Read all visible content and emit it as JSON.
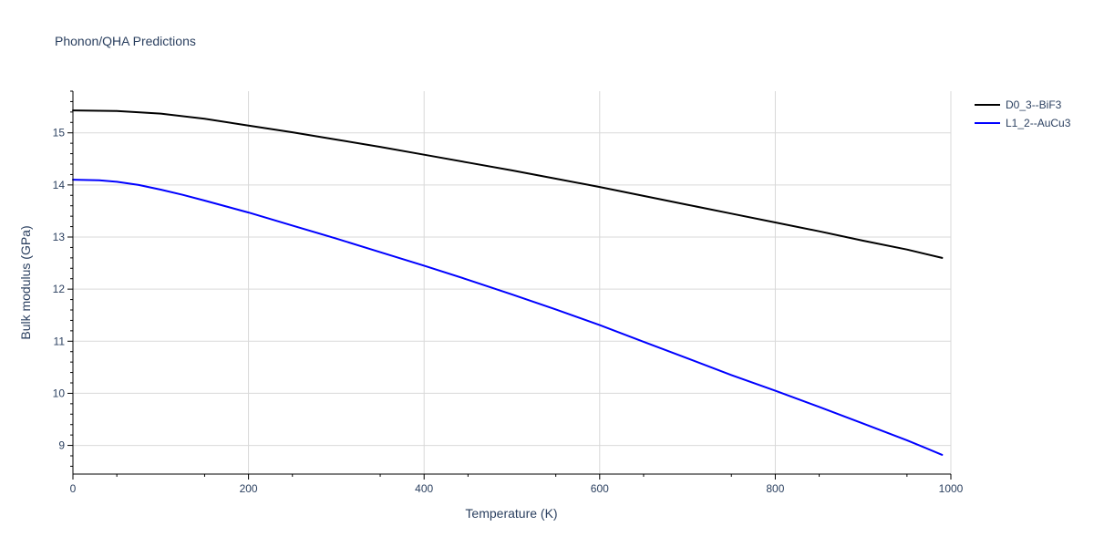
{
  "chart_data": {
    "type": "line",
    "title": "Phonon/QHA Predictions",
    "xlabel": "Temperature (K)",
    "ylabel": "Bulk modulus (GPa)",
    "xlim": [
      0,
      1000
    ],
    "ylim": [
      8.45,
      15.8
    ],
    "x_ticks": [
      0,
      200,
      400,
      600,
      800,
      1000
    ],
    "y_ticks": [
      9,
      10,
      11,
      12,
      13,
      14,
      15
    ],
    "grid": true,
    "legend_position": "top-right",
    "series": [
      {
        "name": "D0_3--BiF3",
        "color": "#000000",
        "x": [
          0,
          50,
          100,
          150,
          200,
          250,
          300,
          350,
          400,
          450,
          500,
          550,
          600,
          650,
          700,
          750,
          800,
          850,
          900,
          950,
          990
        ],
        "y": [
          15.43,
          15.42,
          15.37,
          15.27,
          15.14,
          15.01,
          14.87,
          14.73,
          14.58,
          14.43,
          14.28,
          14.12,
          13.96,
          13.79,
          13.62,
          13.45,
          13.28,
          13.11,
          12.93,
          12.76,
          12.6
        ]
      },
      {
        "name": "L1_2--AuCu3",
        "color": "#0000ff",
        "x": [
          0,
          30,
          50,
          75,
          100,
          125,
          150,
          200,
          250,
          300,
          350,
          400,
          450,
          500,
          550,
          600,
          650,
          700,
          750,
          800,
          850,
          900,
          950,
          990
        ],
        "y": [
          14.1,
          14.09,
          14.06,
          14.0,
          13.91,
          13.81,
          13.7,
          13.47,
          13.22,
          12.97,
          12.71,
          12.45,
          12.18,
          11.9,
          11.61,
          11.31,
          10.99,
          10.67,
          10.35,
          10.05,
          9.74,
          9.42,
          9.1,
          8.82
        ]
      }
    ]
  }
}
